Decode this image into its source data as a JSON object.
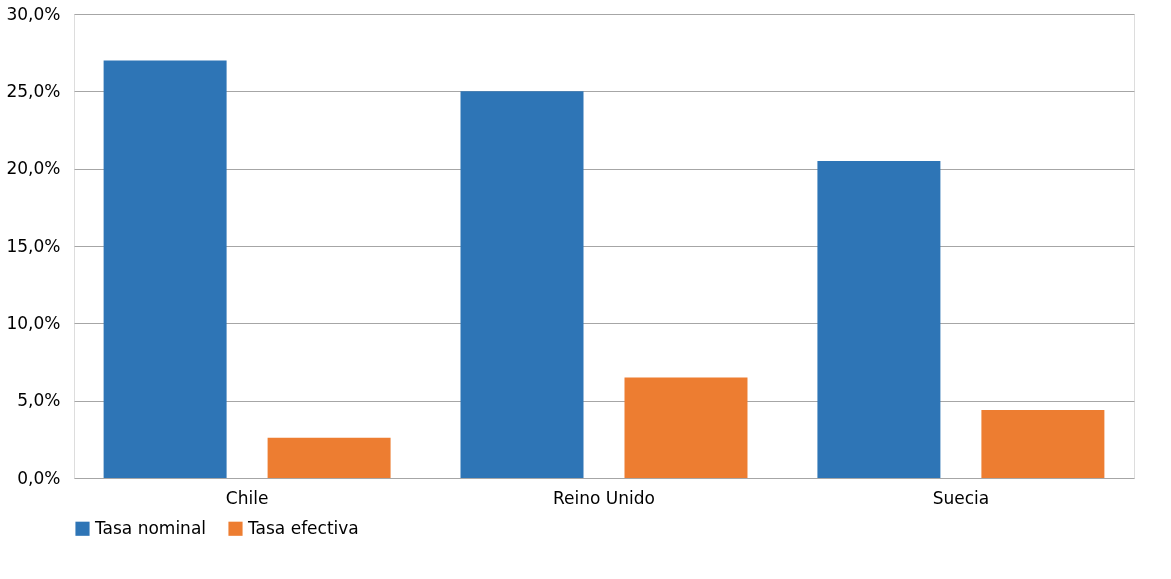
{
  "chart_data": {
    "type": "bar",
    "categories": [
      "Chile",
      "Reino Unido",
      "Suecia"
    ],
    "series": [
      {
        "name": "Tasa nominal",
        "color": "#2e75b6",
        "values": [
          27.0,
          25.0,
          20.5
        ]
      },
      {
        "name": "Tasa efectiva",
        "color": "#ed7d31",
        "values": [
          2.6,
          6.5,
          4.4
        ]
      }
    ],
    "ylim": [
      0,
      30
    ],
    "yticks": [
      {
        "value": 0,
        "label": "0,0%"
      },
      {
        "value": 5,
        "label": "5,0%"
      },
      {
        "value": 10,
        "label": "10,0%"
      },
      {
        "value": 15,
        "label": "15,0%"
      },
      {
        "value": 20,
        "label": "20,0%"
      },
      {
        "value": 25,
        "label": "25,0%"
      },
      {
        "value": 30,
        "label": "30,0%"
      }
    ],
    "grid": "y",
    "legend": "bottom"
  }
}
